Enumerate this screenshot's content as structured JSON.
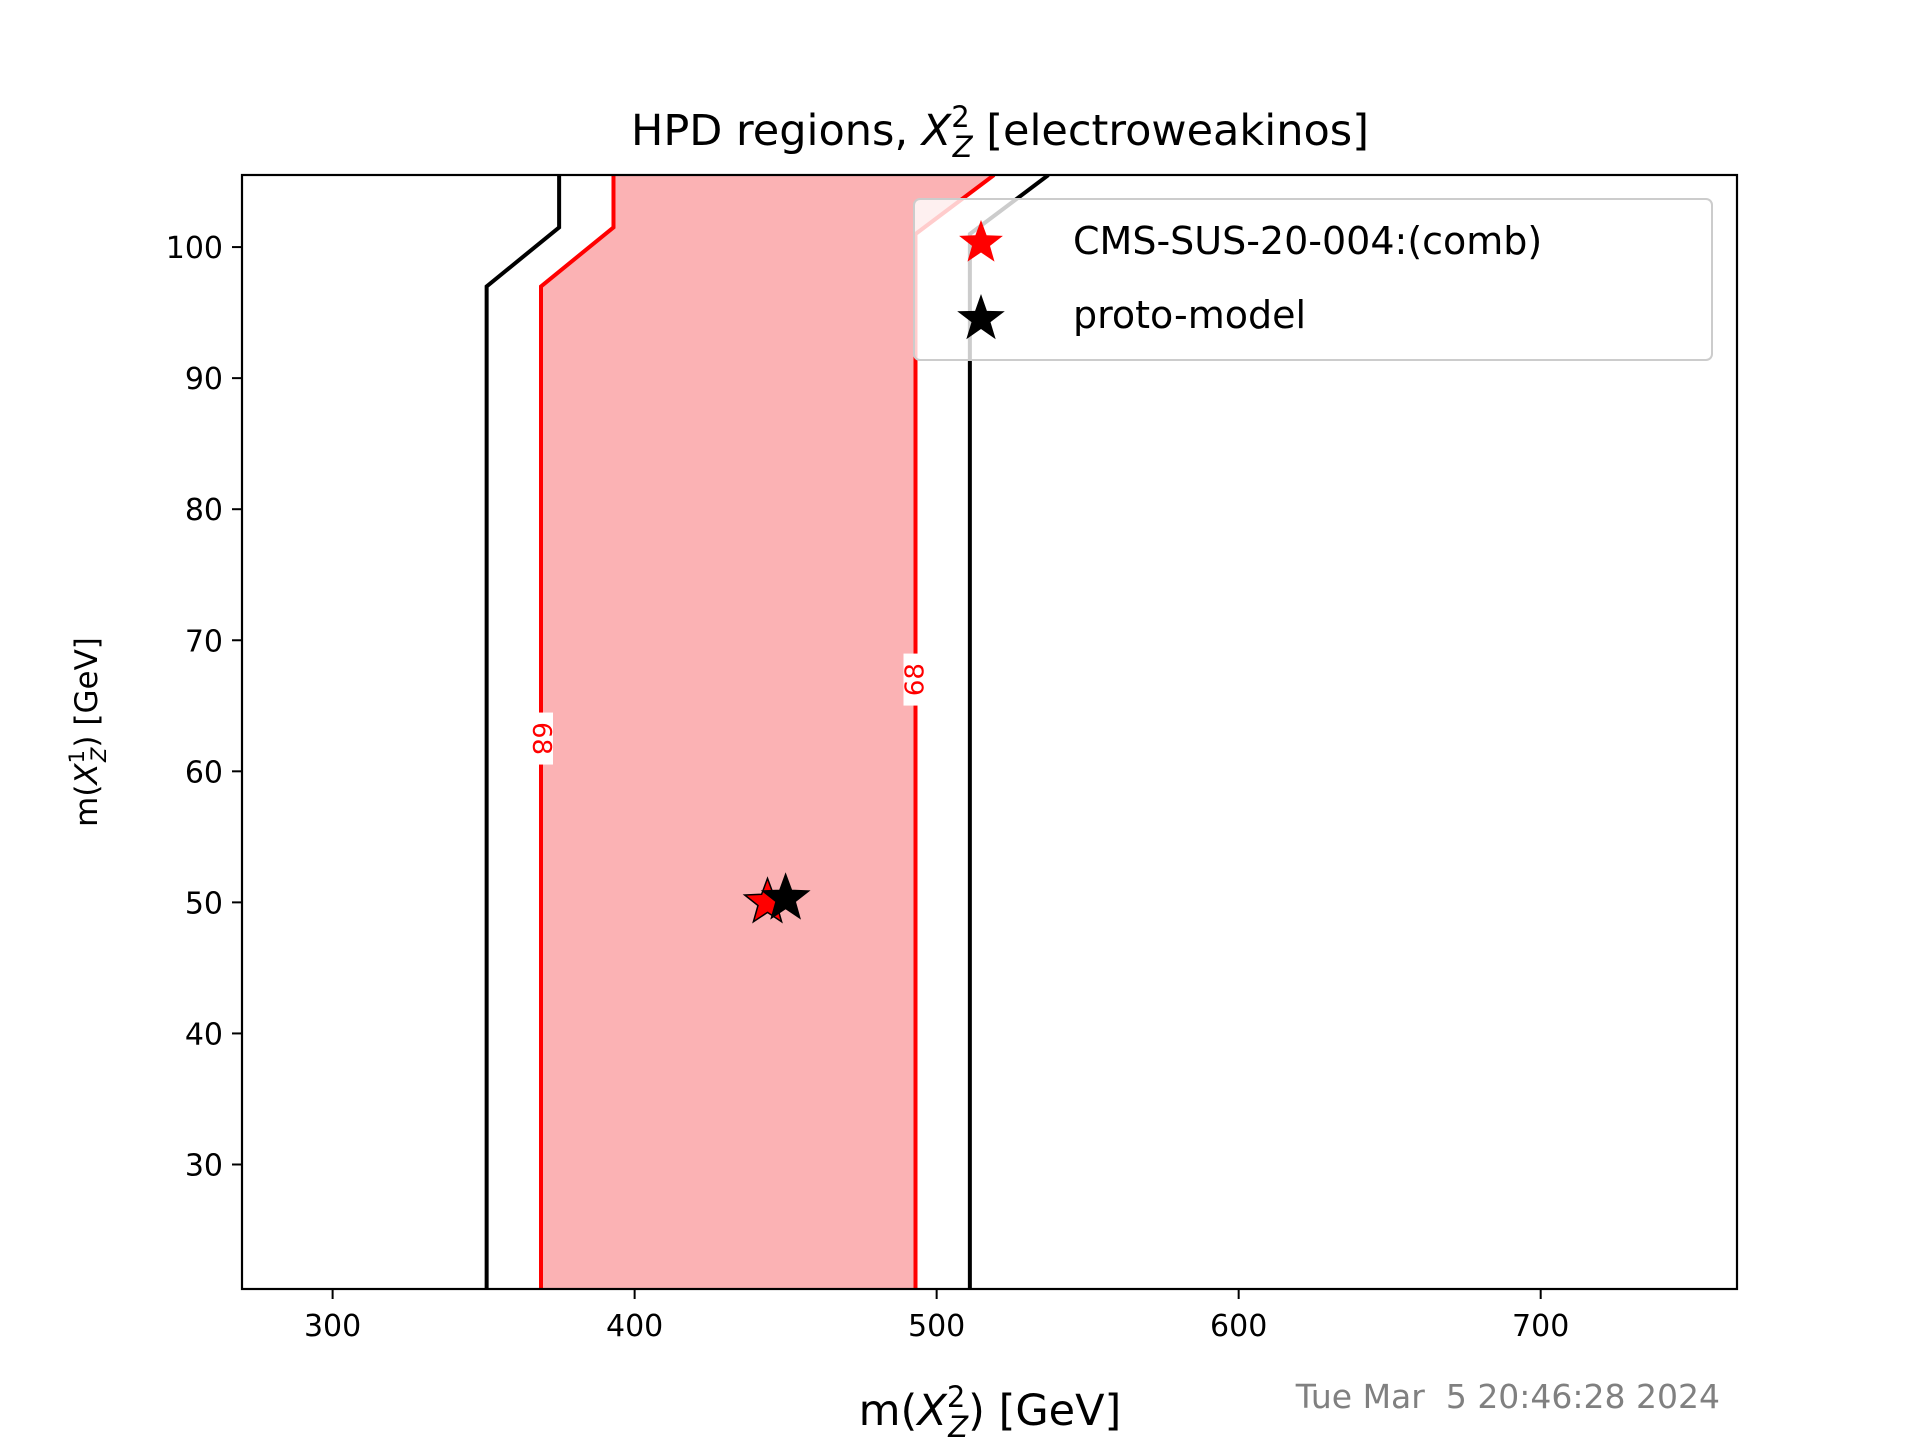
{
  "chart_data": {
    "type": "contour",
    "title": "HPD regions, ",
    "title_symbol": "X",
    "title_sup": "2",
    "title_sub": "Z",
    "title_suffix": " [electroweakinos]",
    "xlabel": "m(",
    "xlabel_symbol": "X",
    "xlabel_sup": "2",
    "xlabel_sub": "Z",
    "xlabel_suffix": ") [GeV]",
    "ylabel": "m(",
    "ylabel_symbol": "X",
    "ylabel_sup": "1",
    "ylabel_sub": "Z",
    "ylabel_suffix": ") [GeV]",
    "xlim": [
      270,
      765
    ],
    "ylim": [
      20.5,
      105.5
    ],
    "xticks": [
      300,
      400,
      500,
      600,
      700
    ],
    "yticks": [
      30,
      40,
      50,
      60,
      70,
      80,
      90,
      100
    ],
    "grid": false,
    "legend_position": "upper-right",
    "filled_region": {
      "color": "#fbb2b4",
      "points": [
        [
          369,
          20.5
        ],
        [
          369,
          97
        ],
        [
          393,
          101.5
        ],
        [
          393,
          105.5
        ],
        [
          519,
          105.5
        ],
        [
          493,
          101
        ],
        [
          493,
          20.5
        ]
      ]
    },
    "contours": [
      {
        "name": "red-left",
        "color": "#ff0000",
        "points": [
          [
            369,
            20.5
          ],
          [
            369,
            97
          ],
          [
            393,
            101.5
          ],
          [
            393,
            105.5
          ]
        ]
      },
      {
        "name": "red-right",
        "color": "#ff0000",
        "points": [
          [
            493,
            20.5
          ],
          [
            493,
            101
          ],
          [
            519,
            105.5
          ]
        ]
      },
      {
        "name": "black-left",
        "color": "#000000",
        "points": [
          [
            351,
            20.5
          ],
          [
            351,
            97
          ],
          [
            375,
            101.5
          ],
          [
            375,
            105.5
          ]
        ]
      },
      {
        "name": "black-right",
        "color": "#000000",
        "points": [
          [
            511,
            20.5
          ],
          [
            511,
            101
          ],
          [
            537,
            105.5
          ]
        ]
      }
    ],
    "contour_labels": [
      {
        "text": "68",
        "x": 369,
        "y": 62.5,
        "rotation": 90
      },
      {
        "text": "68",
        "x": 493,
        "y": 67,
        "rotation": -90
      }
    ],
    "points": [
      {
        "name": "CMS-SUS-20-004:(comb)",
        "x": 444,
        "y": 50,
        "color": "#ff0000"
      },
      {
        "name": "proto-model",
        "x": 450,
        "y": 50.3,
        "color": "#000000"
      }
    ],
    "legend": [
      {
        "label": "CMS-SUS-20-004:(comb)",
        "color": "#ff0000"
      },
      {
        "label": "proto-model",
        "color": "#000000"
      }
    ],
    "timestamp": "Tue Mar  5 20:46:28 2024"
  }
}
